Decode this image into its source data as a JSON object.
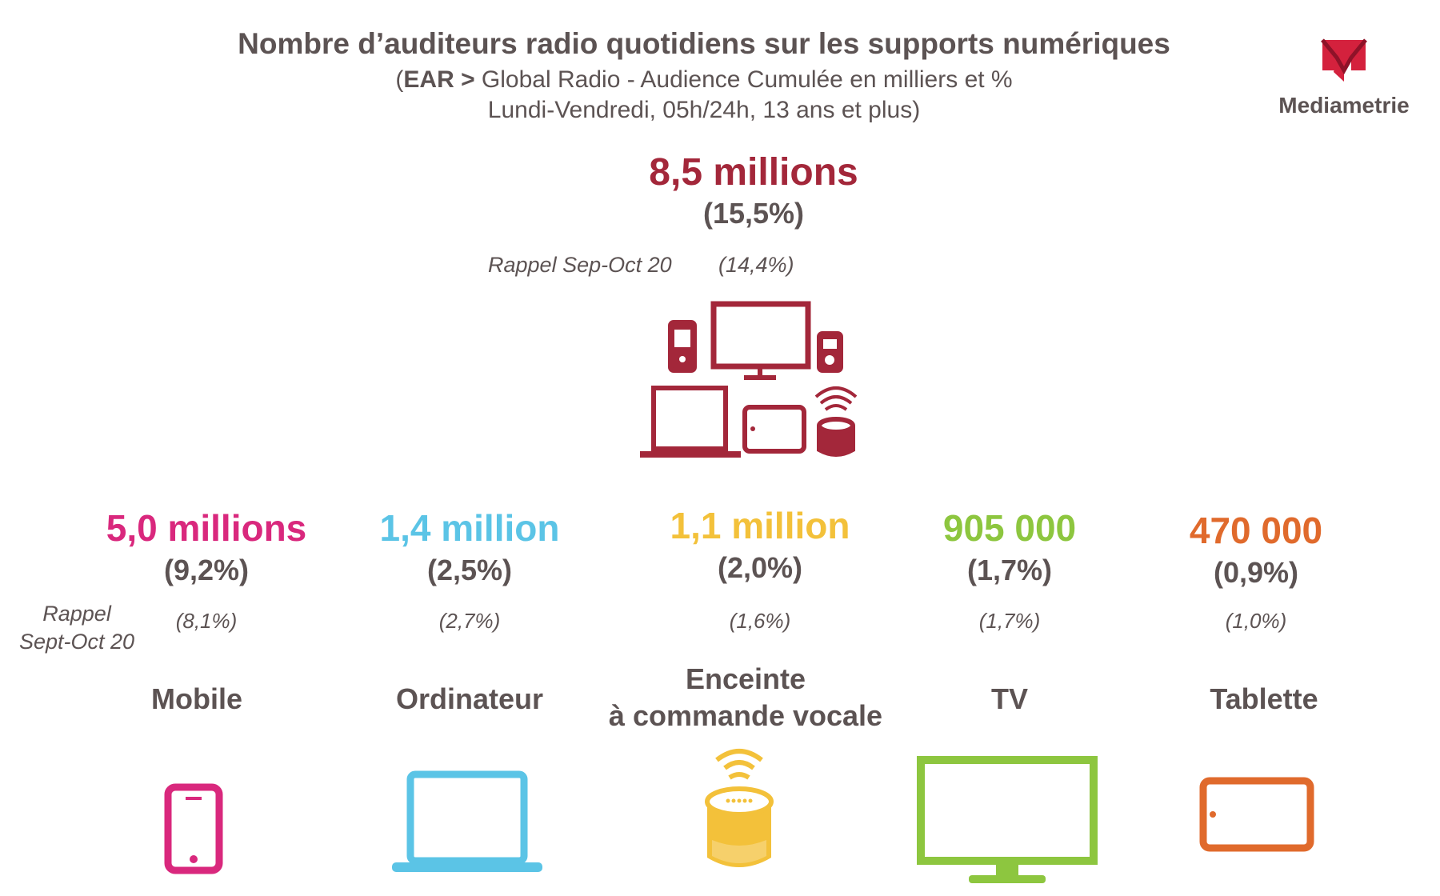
{
  "header": {
    "title": "Nombre d’auditeurs radio quotidiens sur les supports numériques",
    "subtitle_line1_bold": "EAR >",
    "subtitle_line1_rest": " Global Radio - Audience Cumulée en milliers et %",
    "subtitle_line2": "Lundi-Vendredi, 05h/24h, 13 ans et plus",
    "open_paren": "(",
    "close_paren": ")"
  },
  "logo": {
    "letter": "M",
    "name": "Mediametrie"
  },
  "total": {
    "value_label": "8,5 millions",
    "pct_label": "(15,5%)",
    "rappel_label": "Rappel Sep-Oct 20",
    "rappel_value": "(14,4%)",
    "color": "#a3273a",
    "icon": "multi-device-icon"
  },
  "rappel_categories_label": [
    "Rappel",
    "Sept-Oct 20"
  ],
  "chart_data": {
    "type": "table",
    "title": "Nombre d’auditeurs radio quotidiens sur les supports numériques",
    "total": {
      "label": "8,5 millions",
      "listeners_thousands": 8500,
      "share_pct": 15.5,
      "previous_share_pct": 14.4
    },
    "categories": [
      {
        "name": [
          "Mobile"
        ],
        "value_label": "5,0 millions",
        "listeners_thousands": 5000,
        "pct_label": "(9,2%)",
        "share_pct": 9.2,
        "rappel_label": "(8,1%)",
        "previous_share_pct": 8.1,
        "color": "#d9287d",
        "icon": "smartphone-icon"
      },
      {
        "name": [
          "Ordinateur"
        ],
        "value_label": "1,4 million",
        "listeners_thousands": 1400,
        "pct_label": "(2,5%)",
        "share_pct": 2.5,
        "rappel_label": "(2,7%)",
        "previous_share_pct": 2.7,
        "color": "#5bc4e6",
        "icon": "laptop-icon"
      },
      {
        "name": [
          "Enceinte",
          "à commande vocale"
        ],
        "value_label": "1,1 million",
        "listeners_thousands": 1100,
        "pct_label": "(2,0%)",
        "share_pct": 2.0,
        "rappel_label": "(1,6%)",
        "previous_share_pct": 1.6,
        "color": "#f3c13a",
        "icon": "smart-speaker-icon"
      },
      {
        "name": [
          "TV"
        ],
        "value_label": "905 000",
        "listeners_thousands": 905,
        "pct_label": "(1,7%)",
        "share_pct": 1.7,
        "rappel_label": "(1,7%)",
        "previous_share_pct": 1.7,
        "color": "#8dc63f",
        "icon": "tv-icon"
      },
      {
        "name": [
          "Tablette"
        ],
        "value_label": "470 000",
        "listeners_thousands": 470,
        "pct_label": "(0,9%)",
        "share_pct": 0.9,
        "rappel_label": "(1,0%)",
        "previous_share_pct": 1.0,
        "color": "#e06a2c",
        "icon": "tablet-icon"
      }
    ]
  }
}
